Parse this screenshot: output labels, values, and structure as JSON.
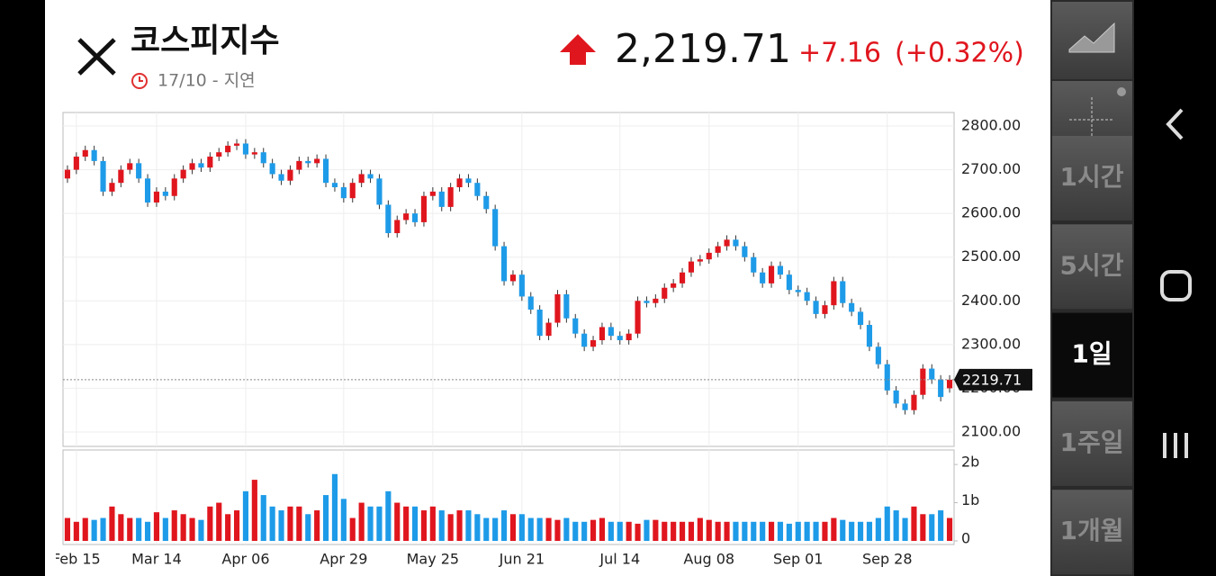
{
  "header": {
    "title": "코스피지수",
    "date": "17/10 - 지연",
    "price": "2,219.71",
    "change": "+7.16",
    "change_pct": "(+0.32%)"
  },
  "side_menu": [
    "1시간",
    "5시간",
    "1일",
    "1주일",
    "1개월"
  ],
  "selected": 2,
  "chart_data": {
    "type": "candlestick",
    "up_color": "#e0161e",
    "down_color": "#1e9be8",
    "categories": [
      null,
      "Feb 15",
      null,
      null,
      null,
      null,
      null,
      null,
      null,
      null,
      "Mar 14",
      null,
      null,
      null,
      null,
      null,
      null,
      null,
      null,
      null,
      "Apr 06",
      null,
      null,
      null,
      null,
      null,
      null,
      null,
      null,
      null,
      null,
      "Apr 29",
      null,
      null,
      null,
      null,
      null,
      null,
      null,
      null,
      null,
      "May 25",
      null,
      null,
      null,
      null,
      null,
      null,
      null,
      null,
      null,
      "Jun 21",
      null,
      null,
      null,
      null,
      null,
      null,
      null,
      null,
      null,
      null,
      "Jul 14",
      null,
      null,
      null,
      null,
      null,
      null,
      null,
      null,
      null,
      "Aug 08",
      null,
      null,
      null,
      null,
      null,
      null,
      null,
      null,
      null,
      "Sep 01",
      null,
      null,
      null,
      null,
      null,
      null,
      null,
      null,
      null,
      "Sep 28",
      null,
      null,
      null,
      null,
      null,
      null,
      null
    ],
    "open": [
      2680,
      2700,
      2730,
      2745,
      2720,
      2650,
      2670,
      2700,
      2715,
      2680,
      2625,
      2650,
      2640,
      2680,
      2700,
      2715,
      2705,
      2730,
      2740,
      2755,
      2760,
      2735,
      2740,
      2715,
      2690,
      2675,
      2700,
      2720,
      2715,
      2725,
      2670,
      2660,
      2635,
      2670,
      2690,
      2680,
      2620,
      2555,
      2585,
      2600,
      2580,
      2640,
      2650,
      2615,
      2660,
      2680,
      2670,
      2640,
      2610,
      2525,
      2445,
      2460,
      2410,
      2380,
      2320,
      2350,
      2415,
      2360,
      2325,
      2295,
      2310,
      2340,
      2320,
      2310,
      2325,
      2400,
      2395,
      2405,
      2430,
      2440,
      2465,
      2490,
      2495,
      2510,
      2525,
      2540,
      2525,
      2500,
      2465,
      2440,
      2480,
      2460,
      2425,
      2420,
      2400,
      2370,
      2390,
      2445,
      2395,
      2375,
      2345,
      2295,
      2255,
      2195,
      2165,
      2150,
      2185,
      2245,
      2220,
      2200
    ],
    "high": [
      2710,
      2740,
      2755,
      2755,
      2730,
      2680,
      2710,
      2725,
      2725,
      2690,
      2660,
      2660,
      2690,
      2710,
      2725,
      2725,
      2740,
      2750,
      2765,
      2770,
      2770,
      2750,
      2750,
      2725,
      2700,
      2710,
      2730,
      2730,
      2735,
      2735,
      2680,
      2670,
      2680,
      2700,
      2700,
      2690,
      2630,
      2595,
      2610,
      2610,
      2650,
      2660,
      2660,
      2670,
      2690,
      2690,
      2680,
      2650,
      2620,
      2535,
      2470,
      2470,
      2420,
      2390,
      2360,
      2425,
      2425,
      2370,
      2335,
      2320,
      2350,
      2350,
      2330,
      2335,
      2410,
      2410,
      2415,
      2440,
      2450,
      2475,
      2500,
      2505,
      2520,
      2535,
      2550,
      2550,
      2535,
      2510,
      2475,
      2490,
      2490,
      2470,
      2435,
      2430,
      2410,
      2400,
      2455,
      2455,
      2405,
      2385,
      2355,
      2305,
      2265,
      2205,
      2175,
      2195,
      2255,
      2255,
      2230,
      2230
    ],
    "low": [
      2670,
      2690,
      2720,
      2710,
      2640,
      2640,
      2660,
      2690,
      2670,
      2615,
      2615,
      2630,
      2630,
      2670,
      2690,
      2695,
      2695,
      2720,
      2730,
      2745,
      2725,
      2725,
      2705,
      2680,
      2665,
      2665,
      2690,
      2705,
      2705,
      2660,
      2650,
      2625,
      2625,
      2660,
      2670,
      2610,
      2545,
      2545,
      2575,
      2570,
      2570,
      2630,
      2605,
      2605,
      2650,
      2660,
      2630,
      2600,
      2515,
      2435,
      2435,
      2400,
      2370,
      2310,
      2310,
      2340,
      2350,
      2315,
      2285,
      2285,
      2300,
      2310,
      2300,
      2300,
      2315,
      2385,
      2385,
      2395,
      2420,
      2430,
      2455,
      2480,
      2485,
      2500,
      2515,
      2515,
      2490,
      2455,
      2430,
      2430,
      2450,
      2415,
      2410,
      2390,
      2360,
      2360,
      2380,
      2385,
      2365,
      2335,
      2285,
      2245,
      2185,
      2155,
      2140,
      2140,
      2175,
      2210,
      2170,
      2190
    ],
    "close": [
      2700,
      2730,
      2745,
      2720,
      2650,
      2670,
      2700,
      2715,
      2680,
      2625,
      2650,
      2640,
      2680,
      2700,
      2715,
      2705,
      2730,
      2740,
      2755,
      2760,
      2735,
      2740,
      2715,
      2690,
      2675,
      2700,
      2720,
      2715,
      2725,
      2670,
      2660,
      2635,
      2670,
      2690,
      2680,
      2620,
      2555,
      2585,
      2600,
      2580,
      2640,
      2650,
      2615,
      2660,
      2680,
      2670,
      2640,
      2610,
      2525,
      2445,
      2460,
      2410,
      2380,
      2320,
      2350,
      2415,
      2360,
      2325,
      2295,
      2310,
      2340,
      2320,
      2310,
      2325,
      2400,
      2395,
      2405,
      2430,
      2440,
      2465,
      2490,
      2495,
      2510,
      2525,
      2540,
      2525,
      2500,
      2465,
      2440,
      2480,
      2460,
      2425,
      2420,
      2400,
      2370,
      2390,
      2445,
      2395,
      2375,
      2345,
      2295,
      2255,
      2195,
      2165,
      2150,
      2185,
      2245,
      2220,
      2180,
      2219.71
    ],
    "volume": [
      0.6,
      0.5,
      0.6,
      0.55,
      0.6,
      0.9,
      0.7,
      0.6,
      0.6,
      0.5,
      0.75,
      0.6,
      0.8,
      0.7,
      0.6,
      0.55,
      0.9,
      1.0,
      0.7,
      0.8,
      1.3,
      1.6,
      1.2,
      0.9,
      0.8,
      0.9,
      0.9,
      0.7,
      0.8,
      1.2,
      1.75,
      1.1,
      0.6,
      1.0,
      0.9,
      0.9,
      1.3,
      1.0,
      0.9,
      0.9,
      0.8,
      0.9,
      0.8,
      0.7,
      0.8,
      0.8,
      0.7,
      0.6,
      0.6,
      0.8,
      0.7,
      0.7,
      0.6,
      0.6,
      0.6,
      0.55,
      0.6,
      0.5,
      0.5,
      0.55,
      0.6,
      0.5,
      0.5,
      0.5,
      0.45,
      0.55,
      0.55,
      0.5,
      0.5,
      0.5,
      0.5,
      0.6,
      0.55,
      0.5,
      0.5,
      0.5,
      0.5,
      0.5,
      0.5,
      0.5,
      0.5,
      0.45,
      0.5,
      0.5,
      0.5,
      0.5,
      0.6,
      0.55,
      0.5,
      0.5,
      0.5,
      0.6,
      0.9,
      0.8,
      0.6,
      0.9,
      0.7,
      0.7,
      0.8,
      0.6
    ],
    "ylim": [
      2067,
      2831
    ],
    "yticks": [
      {
        "value": 2100,
        "label": "2100.00"
      },
      {
        "value": 2200,
        "label": "2200.00"
      },
      {
        "value": 2300,
        "label": "2300.00"
      },
      {
        "value": 2400,
        "label": "2400.00"
      },
      {
        "value": 2500,
        "label": "2500.00"
      },
      {
        "value": 2600,
        "label": "2600.00"
      },
      {
        "value": 2700,
        "label": "2700.00"
      },
      {
        "value": 2800,
        "label": "2800.00"
      }
    ],
    "volume_ylim": [
      0,
      2.38
    ],
    "volume_yticks": [
      0,
      {
        "value": 1,
        "label": "1b"
      },
      {
        "value": 2,
        "label": "2b"
      }
    ],
    "last_price": 2219.71,
    "grid": true
  }
}
